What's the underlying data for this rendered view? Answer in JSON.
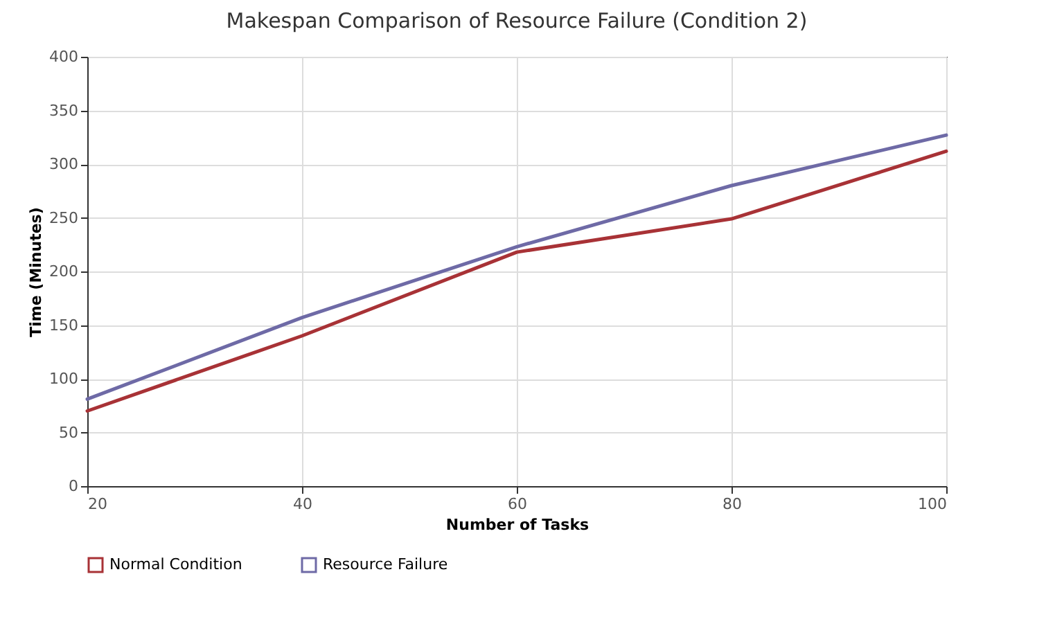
{
  "chart_data": {
    "type": "line",
    "title": "Makespan Comparison of Resource Failure (Condition 2)",
    "xlabel": "Number of Tasks",
    "ylabel": "Time (Minutes)",
    "x": [
      20,
      40,
      60,
      80,
      100
    ],
    "series": [
      {
        "name": "Normal Condition",
        "color": "#a83236",
        "values": [
          70,
          140,
          218,
          249,
          312
        ]
      },
      {
        "name": "Resource Failure",
        "color": "#6e6aa6",
        "values": [
          81,
          157,
          223,
          280,
          327
        ]
      }
    ],
    "xlim": [
      20,
      100
    ],
    "xticks": [
      20,
      40,
      60,
      80,
      100
    ],
    "ylim": [
      0,
      400
    ],
    "yticks": [
      0,
      50,
      100,
      150,
      200,
      250,
      300,
      350,
      400
    ],
    "grid": true,
    "legend": "bottom left",
    "marker": "none",
    "line_style": "solid"
  }
}
